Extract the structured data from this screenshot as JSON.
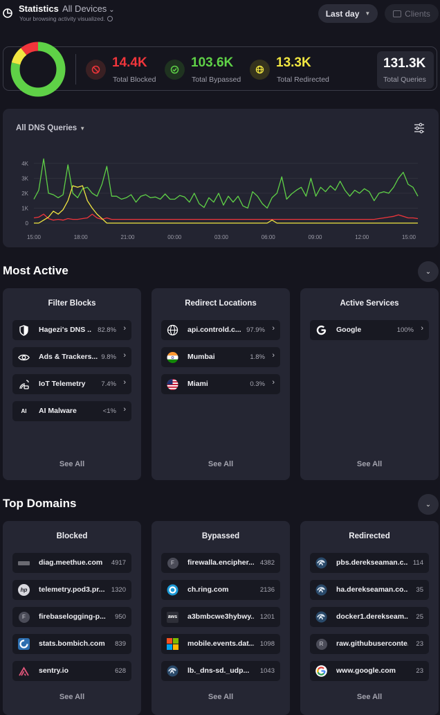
{
  "header": {
    "title": "Statistics",
    "devices": "All Devices",
    "subtitle": "Your browsing activity visualized.",
    "range": "Last day",
    "clients": "Clients"
  },
  "summary": {
    "blocked": {
      "value": "14.4K",
      "label": "Total Blocked",
      "color": "#f0353b"
    },
    "bypassed": {
      "value": "103.6K",
      "label": "Total Bypassed",
      "color": "#5fd147"
    },
    "redirected": {
      "value": "13.3K",
      "label": "Total Redirected",
      "color": "#f1e641"
    },
    "total": {
      "value": "131.3K",
      "label": "Total Queries"
    }
  },
  "chart_data": {
    "type": "line",
    "title": "All DNS Queries",
    "y_ticks": [
      "4K",
      "3K",
      "2K",
      "1K",
      "0"
    ],
    "x_ticks": [
      "15:00",
      "18:00",
      "21:00",
      "00:00",
      "03:00",
      "06:00",
      "09:00",
      "12:00",
      "15:00"
    ],
    "ylim": [
      0,
      4500
    ],
    "series": [
      {
        "color": "#5fd147",
        "values": [
          1600,
          2200,
          4300,
          2000,
          1900,
          1700,
          1900,
          3900,
          2000,
          1700,
          2300,
          2400,
          2000,
          1800,
          2600,
          3800,
          1800,
          1800,
          1600,
          1700,
          1900,
          1400,
          1800,
          1900,
          1700,
          1750,
          1600,
          1950,
          1600,
          1600,
          1850,
          1750,
          1400,
          2000,
          1300,
          1050,
          1700,
          1400,
          2000,
          1200,
          1800,
          1400,
          1800,
          1150,
          1000,
          2100,
          1800,
          1300,
          1000,
          1700,
          2000,
          3100,
          1600,
          1950,
          2200,
          2400,
          1800,
          3000,
          1800,
          2400,
          2100,
          2500,
          2200,
          2800,
          2200,
          1800,
          2200,
          2000,
          2300,
          2100,
          1500,
          2000,
          2100,
          2000,
          2400,
          3000,
          3400,
          2600,
          2400,
          1800
        ]
      },
      {
        "color": "#f0353b",
        "values": [
          350,
          400,
          600,
          300,
          200,
          250,
          200,
          300,
          250,
          250,
          300,
          350,
          600,
          350,
          250,
          350,
          250,
          250,
          250,
          250,
          250,
          250,
          250,
          250,
          250,
          250,
          250,
          250,
          250,
          250,
          250,
          250,
          250,
          250,
          250,
          250,
          250,
          250,
          250,
          250,
          250,
          250,
          250,
          250,
          250,
          250,
          250,
          250,
          250,
          250,
          250,
          250,
          250,
          250,
          250,
          250,
          250,
          250,
          250,
          250,
          250,
          250,
          250,
          250,
          250,
          250,
          250,
          250,
          250,
          250,
          250,
          300,
          350,
          400,
          450,
          550,
          450,
          350,
          350,
          300
        ]
      },
      {
        "color": "#f1e641",
        "values": [
          0,
          0,
          200,
          400,
          800,
          600,
          900,
          1500,
          2500,
          2400,
          2500,
          1500,
          1000,
          600,
          300,
          0,
          0,
          0,
          0,
          0,
          0,
          0,
          0,
          0,
          0,
          0,
          0,
          0,
          0,
          0,
          0,
          0,
          0,
          0,
          0,
          0,
          0,
          0,
          0,
          0,
          0,
          0,
          0,
          0,
          0,
          0,
          0,
          0,
          0,
          200,
          0,
          0,
          0,
          0,
          0,
          0,
          0,
          0,
          0,
          0,
          0,
          0,
          0,
          0,
          0,
          0,
          0,
          0,
          0,
          0,
          0,
          0,
          0,
          0,
          0,
          0,
          0,
          0,
          0,
          0
        ]
      }
    ]
  },
  "most_active": {
    "title": "Most Active",
    "filter_blocks": {
      "title": "Filter Blocks",
      "see_all": "See All",
      "items": [
        {
          "label": "Hagezi's DNS ...",
          "value": "82.8%"
        },
        {
          "label": "Ads & Trackers...",
          "value": "9.8%"
        },
        {
          "label": "IoT Telemetry",
          "value": "7.4%"
        },
        {
          "label": "AI Malware",
          "value": "<1%",
          "icon_text": "AI"
        }
      ]
    },
    "redirect_locations": {
      "title": "Redirect Locations",
      "see_all": "See All",
      "items": [
        {
          "label": "api.controld.c...",
          "value": "97.9%"
        },
        {
          "label": "Mumbai",
          "value": "1.8%"
        },
        {
          "label": "Miami",
          "value": "0.3%"
        }
      ]
    },
    "active_services": {
      "title": "Active Services",
      "see_all": "See All",
      "items": [
        {
          "label": "Google",
          "value": "100%"
        }
      ]
    }
  },
  "top_domains": {
    "title": "Top Domains",
    "blocked": {
      "title": "Blocked",
      "see_all": "See All",
      "items": [
        {
          "label": "diag.meethue.com",
          "value": "4917"
        },
        {
          "label": "telemetry.pod3.pr...",
          "value": "1320"
        },
        {
          "label": "firebaselogging-p...",
          "value": "950",
          "icon_text": "F"
        },
        {
          "label": "stats.bombich.com",
          "value": "839"
        },
        {
          "label": "sentry.io",
          "value": "628"
        }
      ]
    },
    "bypassed": {
      "title": "Bypassed",
      "see_all": "See All",
      "items": [
        {
          "label": "firewalla.encipher...",
          "value": "4382",
          "icon_text": "F"
        },
        {
          "label": "ch.ring.com",
          "value": "2136"
        },
        {
          "label": "a3bmbcwe3hybwy...",
          "value": "1201",
          "icon_text": "aws"
        },
        {
          "label": "mobile.events.dat...",
          "value": "1098"
        },
        {
          "label": "lb._dns-sd._udp...",
          "value": "1043"
        }
      ]
    },
    "redirected": {
      "title": "Redirected",
      "see_all": "See All",
      "items": [
        {
          "label": "pbs.derekseaman.c...",
          "value": "114"
        },
        {
          "label": "ha.derekseaman.co...",
          "value": "35"
        },
        {
          "label": "docker1.derekseam...",
          "value": "25"
        },
        {
          "label": "raw.githubuserconte...",
          "value": "23",
          "icon_text": "R"
        },
        {
          "label": "www.google.com",
          "value": "23"
        }
      ]
    }
  }
}
